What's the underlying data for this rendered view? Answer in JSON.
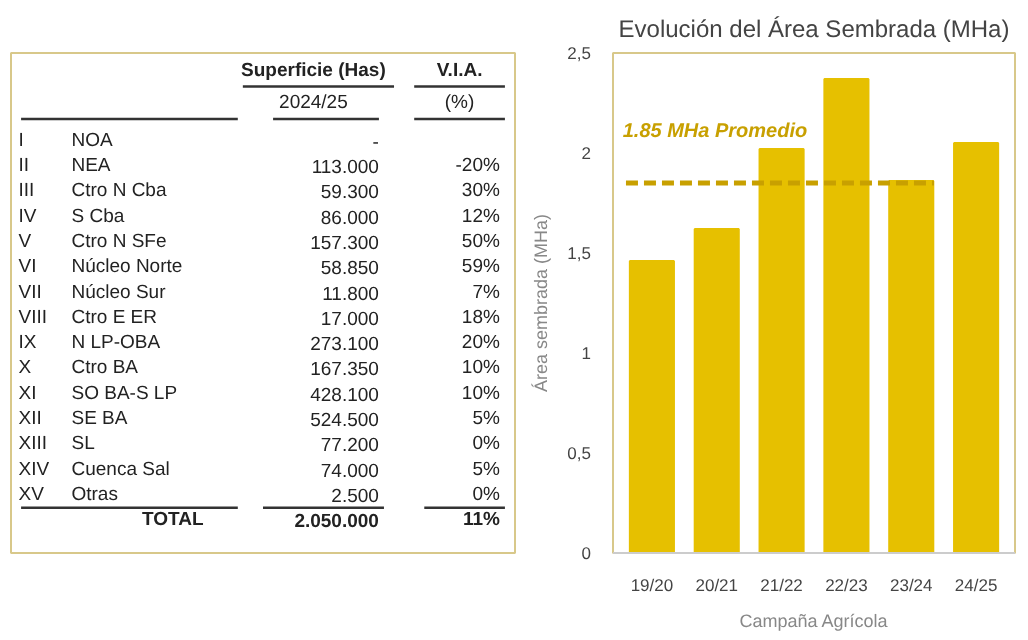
{
  "chart_data": [
    {
      "type": "other",
      "annotations": [
        "I",
        "II",
        "III",
        "IV",
        "V",
        "VI",
        "VII",
        "VIII",
        "IX",
        "X",
        "XI",
        "XII",
        "XIII",
        "XIV",
        "XV"
      ],
      "categories": [
        "NOA",
        "NEA",
        "Ctro N Cba",
        "S Cba",
        "Ctro N SFe",
        "Núcleo Norte",
        "Núcleo Sur",
        "Ctro E ER",
        "N LP-OBA",
        "Ctro BA",
        "SO BA-S LP",
        "SE BA",
        "SL",
        "Cuenca Sal",
        "Otras",
        "TOTAL"
      ],
      "series": [
        {
          "name": "Superficie (Has)\n2024/25",
          "values": [
            null,
            113000,
            59300,
            86000,
            157300,
            58850,
            11800,
            17000,
            273100,
            167350,
            428100,
            524500,
            77200,
            74000,
            2500,
            2050000
          ],
          "value_labels": [
            "-",
            "113.000",
            "59.300",
            "86.000",
            "157.300",
            "58.850",
            "11.800",
            "17.000",
            "273.100",
            "167.350",
            "428.100",
            "524.500",
            "77.200",
            "74.000",
            "2.500",
            "2.050.000"
          ]
        },
        {
          "name": "V.I.A.\n(%)",
          "values": [
            null,
            -20,
            30,
            12,
            50,
            59,
            7,
            18,
            20,
            10,
            10,
            5,
            0,
            5,
            0,
            11
          ],
          "value_labels": [
            null,
            "-20%",
            "30%",
            "12%",
            "50%",
            "59%",
            "7%",
            "18%",
            "20%",
            "10%",
            "10%",
            "5%",
            "0%",
            "5%",
            "0%",
            "11%"
          ]
        }
      ]
    },
    {
      "type": "bar",
      "title": "Evolución del Área Sembrada (MHa)",
      "xlabel": "Campaña Agrícola",
      "ylabel": "Área sembrada (MHa)",
      "categories": [
        "19/20",
        "20/21",
        "21/22",
        "22/23",
        "23/24",
        "24/25"
      ],
      "values": [
        1.46,
        1.62,
        2.02,
        2.37,
        1.86,
        2.05
      ],
      "color": "#e6c000",
      "ylim": [
        0,
        2.5
      ],
      "yticks": [
        0,
        {
          "value": 0.5,
          "label": "0,5"
        },
        1,
        {
          "value": 1.5,
          "label": "1,5"
        },
        2,
        {
          "value": 2.5,
          "label": "2,5"
        }
      ],
      "ref_lines": [
        {
          "axis": "y",
          "value": 1.85,
          "label": "1.85 MHa Promedio",
          "color": "#c8a000",
          "line_style": "dashed"
        }
      ],
      "grid": false
    }
  ]
}
